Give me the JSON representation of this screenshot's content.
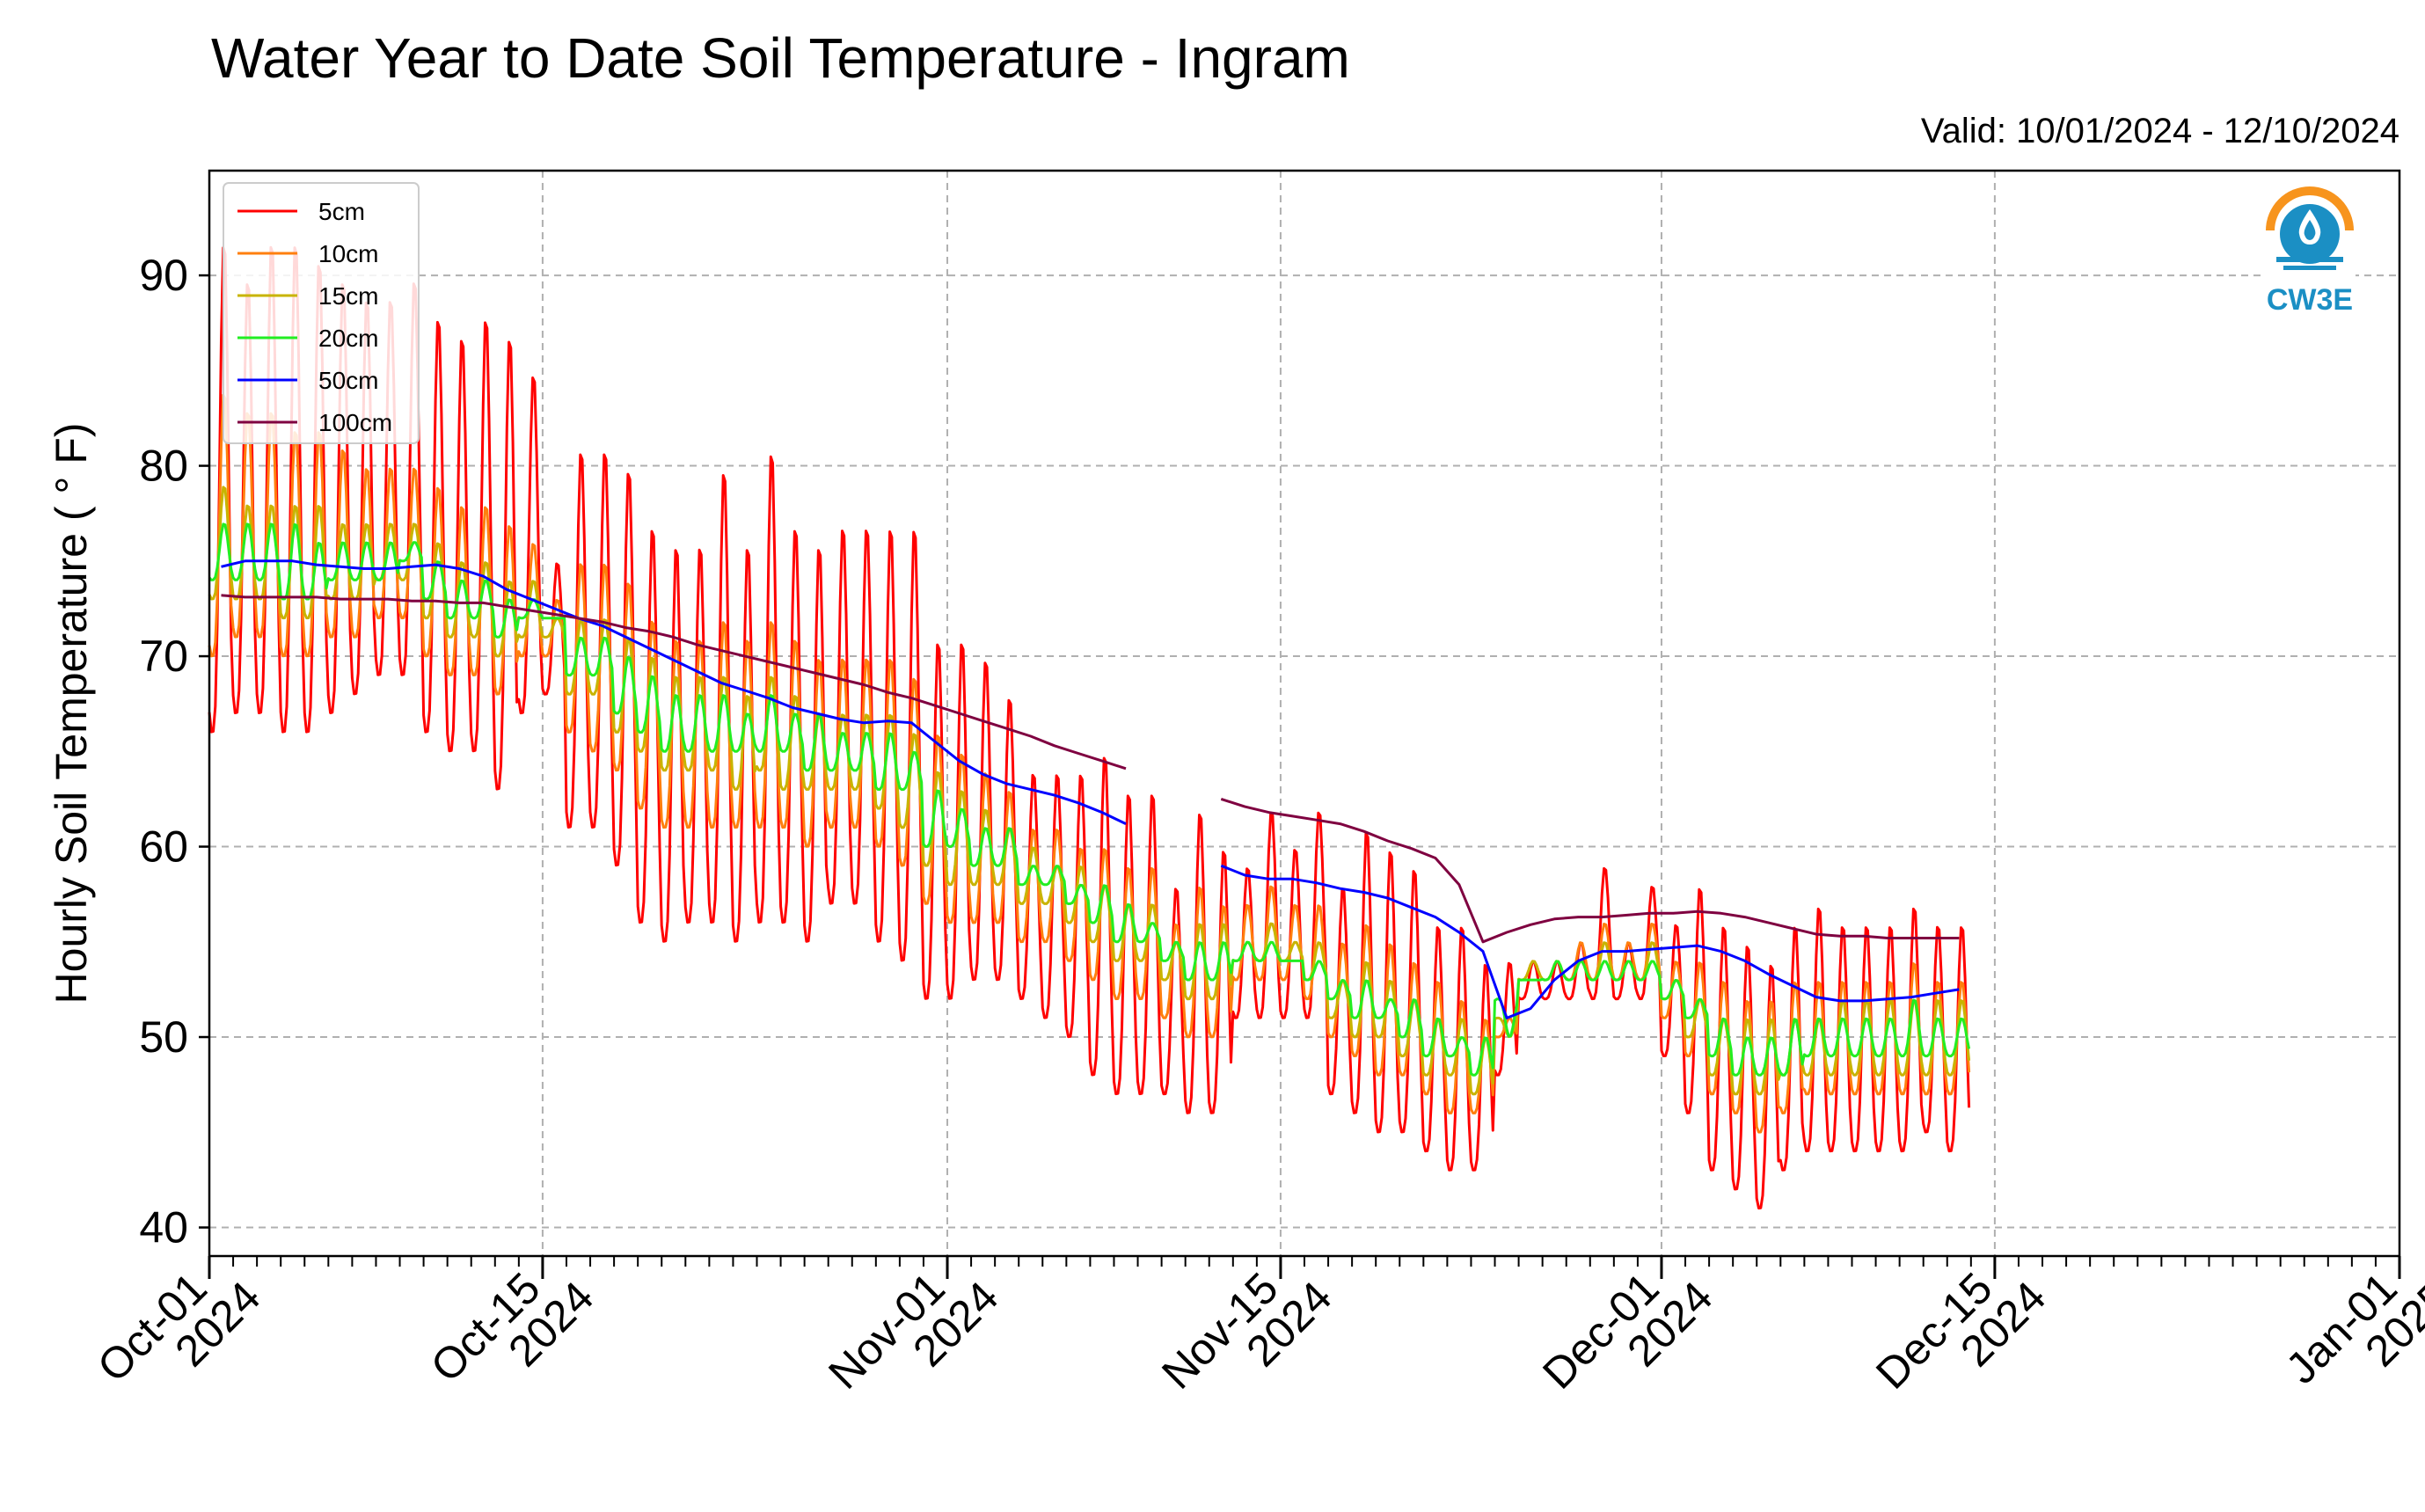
{
  "title": "Water Year to Date Soil Temperature - Ingram",
  "valid_text": "Valid: 10/01/2024 - 12/10/2024",
  "logo_text": "CW3E",
  "chart_data": {
    "type": "line",
    "title": "Water Year to Date Soil Temperature - Ingram",
    "xlabel": "",
    "ylabel": "Hourly Soil Temperature ( ° F)",
    "xlim": [
      "2024-10-01",
      "2025-01-01"
    ],
    "ylim": [
      38.5,
      95.5
    ],
    "yticks": [
      40,
      50,
      60,
      70,
      80,
      90
    ],
    "xticks": [
      {
        "date": "2024-10-01",
        "line1": "Oct-01",
        "line2": "2024"
      },
      {
        "date": "2024-10-15",
        "line1": "Oct-15",
        "line2": "2024"
      },
      {
        "date": "2024-11-01",
        "line1": "Nov-01",
        "line2": "2024"
      },
      {
        "date": "2024-11-15",
        "line1": "Nov-15",
        "line2": "2024"
      },
      {
        "date": "2024-12-01",
        "line1": "Dec-01",
        "line2": "2024"
      },
      {
        "date": "2024-12-15",
        "line1": "Dec-15",
        "line2": "2024"
      },
      {
        "date": "2025-01-01",
        "line1": "Jan-01",
        "line2": "2025"
      }
    ],
    "grid": true,
    "legend_position": "top-left",
    "colors": {
      "5cm": "#ff0000",
      "10cm": "#ff7f0e",
      "15cm": "#c8b400",
      "20cm": "#22ee22",
      "50cm": "#0000ff",
      "100cm": "#7f0040"
    },
    "series": [
      {
        "name": "5cm",
        "daily_max": [
          92,
          90,
          92,
          92,
          91,
          90,
          89,
          89,
          90,
          88,
          87,
          88,
          87,
          85,
          75,
          81,
          81,
          80,
          77,
          76,
          76,
          80,
          76,
          81,
          77,
          76,
          77,
          77,
          77,
          77,
          71,
          71,
          70,
          68,
          64,
          64,
          64,
          65,
          63,
          63,
          58,
          62,
          60,
          59,
          62,
          60,
          62,
          58,
          61,
          60,
          59,
          56,
          56,
          54,
          54,
          54,
          54,
          55,
          59,
          55,
          58,
          56,
          58,
          56,
          55,
          54,
          56,
          57,
          56,
          56,
          56,
          57,
          56,
          56
        ],
        "daily_min": [
          66,
          67,
          67,
          66,
          66,
          67,
          68,
          69,
          69,
          66,
          65,
          65,
          63,
          67,
          68,
          61,
          61,
          59,
          56,
          55,
          56,
          56,
          55,
          56,
          56,
          55,
          57,
          57,
          55,
          54,
          52,
          52,
          53,
          53,
          52,
          51,
          50,
          48,
          47,
          47,
          47,
          46,
          46,
          51,
          51,
          51,
          51,
          47,
          46,
          45,
          45,
          44,
          43,
          43,
          48,
          52,
          52,
          52,
          52,
          52,
          52,
          49,
          46,
          43,
          42,
          41,
          43,
          44,
          44,
          44,
          44,
          44,
          45,
          44
        ]
      },
      {
        "name": "10cm",
        "daily_max": [
          84,
          83,
          83,
          82,
          82,
          81,
          80,
          80,
          80,
          79,
          78,
          78,
          77,
          76,
          73,
          75,
          75,
          74,
          72,
          71,
          71,
          72,
          71,
          72,
          71,
          70,
          70,
          70,
          70,
          69,
          66,
          65,
          64,
          63,
          61,
          61,
          60,
          60,
          59,
          59,
          56,
          58,
          57,
          57,
          58,
          57,
          57,
          55,
          56,
          55,
          54,
          53,
          52,
          51,
          51,
          54,
          54,
          55,
          56,
          55,
          56,
          54,
          54,
          53,
          52,
          52,
          53,
          53,
          53,
          53,
          53,
          54,
          53,
          53
        ],
        "daily_min": [
          70,
          71,
          71,
          70,
          70,
          71,
          71,
          72,
          72,
          70,
          69,
          69,
          68,
          70,
          70,
          66,
          65,
          64,
          62,
          61,
          61,
          61,
          61,
          61,
          61,
          60,
          61,
          61,
          60,
          59,
          57,
          56,
          56,
          56,
          55,
          55,
          54,
          53,
          52,
          52,
          51,
          50,
          50,
          53,
          53,
          53,
          52,
          50,
          49,
          48,
          48,
          47,
          46,
          46,
          50,
          53,
          53,
          53,
          53,
          53,
          53,
          51,
          49,
          47,
          46,
          45,
          46,
          47,
          47,
          47,
          47,
          47,
          47,
          47
        ]
      },
      {
        "name": "15cm",
        "daily_max": [
          79,
          78,
          78,
          78,
          78,
          77,
          77,
          77,
          77,
          76,
          75,
          75,
          74,
          74,
          72,
          72,
          72,
          71,
          70,
          69,
          69,
          69,
          68,
          69,
          68,
          67,
          67,
          67,
          67,
          66,
          64,
          63,
          62,
          61,
          60,
          59,
          59,
          58,
          57,
          57,
          55,
          56,
          56,
          55,
          56,
          55,
          55,
          53,
          54,
          53,
          52,
          51,
          51,
          50,
          50,
          54,
          54,
          54,
          55,
          54,
          55,
          53,
          52,
          51,
          51,
          51,
          51,
          51,
          52,
          52,
          52,
          52,
          52,
          52
        ],
        "daily_min": [
          73,
          73,
          73,
          72,
          72,
          73,
          73,
          74,
          74,
          72,
          71,
          71,
          70,
          71,
          71,
          68,
          68,
          66,
          65,
          64,
          64,
          64,
          63,
          64,
          63,
          63,
          63,
          63,
          62,
          61,
          59,
          58,
          58,
          58,
          57,
          57,
          56,
          55,
          54,
          54,
          53,
          52,
          52,
          54,
          54,
          54,
          53,
          51,
          50,
          50,
          49,
          48,
          48,
          47,
          51,
          53,
          53,
          53,
          53,
          53,
          53,
          52,
          50,
          48,
          47,
          47,
          48,
          48,
          48,
          48,
          48,
          48,
          48,
          48
        ]
      },
      {
        "name": "20cm",
        "daily_max": [
          77,
          77,
          77,
          77,
          76,
          76,
          76,
          76,
          76,
          75,
          74,
          74,
          73,
          73,
          72,
          71,
          71,
          70,
          69,
          68,
          68,
          68,
          67,
          68,
          67,
          67,
          66,
          66,
          66,
          65,
          63,
          62,
          61,
          61,
          59,
          59,
          58,
          58,
          57,
          56,
          55,
          55,
          55,
          55,
          55,
          54,
          54,
          53,
          53,
          52,
          52,
          51,
          50,
          50,
          50,
          53,
          54,
          54,
          54,
          54,
          54,
          53,
          52,
          51,
          50,
          50,
          51,
          51,
          51,
          51,
          51,
          52,
          51,
          51
        ],
        "daily_min": [
          74,
          74,
          74,
          73,
          73,
          74,
          74,
          74,
          75,
          73,
          72,
          72,
          71,
          72,
          72,
          69,
          69,
          67,
          66,
          65,
          65,
          65,
          65,
          65,
          65,
          64,
          64,
          64,
          63,
          63,
          60,
          60,
          59,
          59,
          58,
          58,
          57,
          56,
          55,
          55,
          54,
          53,
          53,
          54,
          54,
          54,
          53,
          52,
          51,
          51,
          50,
          49,
          49,
          48,
          52,
          53,
          53,
          53,
          53,
          53,
          53,
          52,
          51,
          49,
          48,
          48,
          48,
          49,
          49,
          49,
          49,
          49,
          49,
          49
        ]
      },
      {
        "name": "50cm",
        "daily_mean": [
          74.7,
          75,
          75,
          75,
          74.8,
          74.7,
          74.6,
          74.6,
          74.7,
          74.8,
          74.6,
          74.2,
          73.5,
          73,
          72.5,
          72,
          71.6,
          71,
          70.4,
          69.8,
          69.2,
          68.6,
          68.2,
          67.8,
          67.3,
          67,
          66.7,
          66.5,
          66.6,
          66.5,
          65.5,
          64.5,
          63.8,
          63.3,
          63,
          62.7,
          62.3,
          61.8,
          61.2,
          60.6,
          60.2,
          59.5,
          59,
          58.5,
          58.3,
          58.3,
          58.1,
          57.8,
          57.6,
          57.3,
          56.8,
          56.3,
          55.5,
          54.5,
          51,
          51.5,
          53,
          54,
          54.5,
          54.5,
          54.6,
          54.7,
          54.8,
          54.5,
          54,
          53.3,
          52.7,
          52.1,
          51.9,
          51.9,
          52,
          52.1,
          52.3,
          52.5
        ],
        "gaps_after_day": [
          39,
          40,
          41
        ]
      },
      {
        "name": "100cm",
        "daily_mean": [
          73.2,
          73.1,
          73.1,
          73.1,
          73.1,
          73,
          73,
          73,
          72.9,
          72.9,
          72.8,
          72.8,
          72.6,
          72.4,
          72.2,
          72,
          71.8,
          71.5,
          71.3,
          71,
          70.6,
          70.3,
          70,
          69.7,
          69.4,
          69.1,
          68.8,
          68.5,
          68.1,
          67.8,
          67.4,
          67,
          66.6,
          66.2,
          65.8,
          65.3,
          64.9,
          64.5,
          64.1,
          63.7,
          63.3,
          62.9,
          62.5,
          62.1,
          61.8,
          61.6,
          61.4,
          61.2,
          60.8,
          60.3,
          59.9,
          59.4,
          58,
          55,
          55.5,
          55.9,
          56.2,
          56.3,
          56.3,
          56.4,
          56.5,
          56.5,
          56.6,
          56.5,
          56.3,
          56,
          55.7,
          55.4,
          55.3,
          55.3,
          55.2,
          55.2,
          55.2,
          55.2
        ],
        "gaps_after_day": [
          39,
          40,
          41
        ]
      }
    ]
  }
}
